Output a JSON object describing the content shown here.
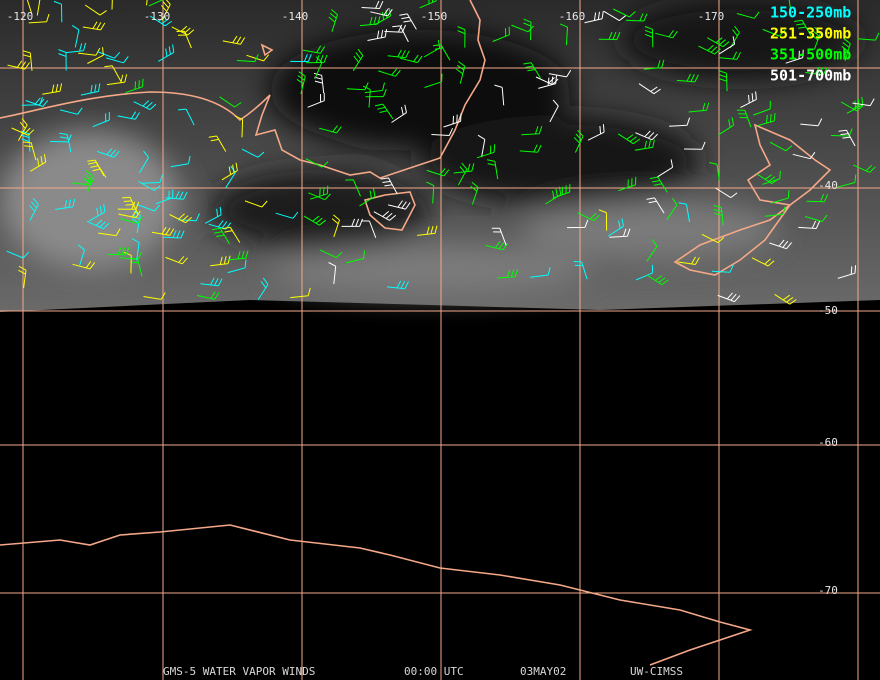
{
  "title": "GMS-5 WATER VAPOR WINDS",
  "time": "00:00 UTC",
  "date": "03MAY02",
  "source": "UW-CIMSS",
  "longitude_labels": [
    "-120",
    "-130",
    "-140",
    "-150",
    "-160",
    "-170"
  ],
  "latitude_labels": [
    "-40",
    "-50",
    "-60",
    "-70"
  ],
  "legend": [
    {
      "label": "150-250mb",
      "color": "#00ffff"
    },
    {
      "label": "251-350mb",
      "color": "#ffff00"
    },
    {
      "label": "351-500mb",
      "color": "#00ff00"
    },
    {
      "label": "501-700mb",
      "color": "#ffffff"
    }
  ]
}
